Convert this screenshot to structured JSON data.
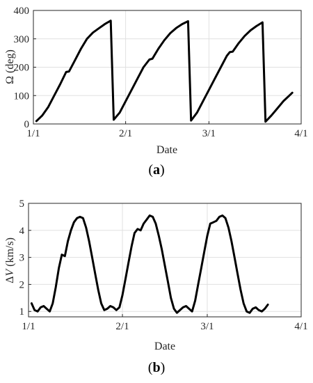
{
  "figure": {
    "caption_a": {
      "open": "(",
      "letter": "a",
      "close": ")"
    },
    "caption_b": {
      "open": "(",
      "letter": "b",
      "close": ")"
    }
  },
  "chart_data": [
    {
      "type": "line",
      "panel": "a",
      "xlabel": "Date",
      "ylabel": "Ω (deg)",
      "x_ticks": [
        {
          "x": 0,
          "label": "1/1"
        },
        {
          "x": 31,
          "label": "2/1"
        },
        {
          "x": 59,
          "label": "3/1"
        },
        {
          "x": 90,
          "label": "4/1"
        }
      ],
      "xlim": [
        0,
        90
      ],
      "ylim": [
        0,
        400
      ],
      "y_ticks": [
        0,
        100,
        200,
        300,
        400
      ],
      "grid": true,
      "series": [
        {
          "values": [
            [
              1,
              10
            ],
            [
              3,
              30
            ],
            [
              5,
              60
            ],
            [
              7,
              100
            ],
            [
              9,
              140
            ],
            [
              11,
              183
            ],
            [
              12,
              185
            ],
            [
              14,
              225
            ],
            [
              16,
              265
            ],
            [
              18,
              300
            ],
            [
              20,
              322
            ],
            [
              22,
              337
            ],
            [
              24,
              352
            ],
            [
              26,
              364
            ],
            [
              27,
              15
            ],
            [
              29,
              40
            ],
            [
              31,
              80
            ],
            [
              33,
              120
            ],
            [
              35,
              160
            ],
            [
              37,
              200
            ],
            [
              39,
              227
            ],
            [
              40,
              230
            ],
            [
              42,
              265
            ],
            [
              44,
              295
            ],
            [
              46,
              320
            ],
            [
              48,
              338
            ],
            [
              50,
              352
            ],
            [
              52,
              362
            ],
            [
              53,
              12
            ],
            [
              55,
              40
            ],
            [
              57,
              80
            ],
            [
              59,
              120
            ],
            [
              61,
              160
            ],
            [
              63,
              200
            ],
            [
              65,
              240
            ],
            [
              66,
              253
            ],
            [
              67,
              255
            ],
            [
              69,
              285
            ],
            [
              71,
              310
            ],
            [
              73,
              330
            ],
            [
              75,
              345
            ],
            [
              77,
              358
            ],
            [
              78,
              8
            ],
            [
              80,
              30
            ],
            [
              82,
              55
            ],
            [
              84,
              80
            ],
            [
              86,
              100
            ],
            [
              87,
              110
            ]
          ]
        }
      ]
    },
    {
      "type": "line",
      "panel": "b",
      "xlabel": "Date",
      "ylabel_prefix": "Δ",
      "ylabel_var": "V",
      "ylabel_unit": " (km/s)",
      "x_ticks": [
        {
          "x": 0,
          "label": "1/1"
        },
        {
          "x": 31,
          "label": "2/1"
        },
        {
          "x": 59,
          "label": "3/1"
        },
        {
          "x": 90,
          "label": "4/1"
        }
      ],
      "xlim": [
        0,
        90
      ],
      "ylim": [
        0.8,
        5
      ],
      "y_ticks": [
        1,
        2,
        3,
        4,
        5
      ],
      "grid": true,
      "series": [
        {
          "values": [
            [
              1,
              1.3
            ],
            [
              2,
              1.05
            ],
            [
              3,
              1.0
            ],
            [
              4,
              1.15
            ],
            [
              5,
              1.2
            ],
            [
              6,
              1.1
            ],
            [
              7,
              1.0
            ],
            [
              8,
              1.3
            ],
            [
              9,
              1.9
            ],
            [
              10,
              2.6
            ],
            [
              11,
              3.1
            ],
            [
              12,
              3.05
            ],
            [
              13,
              3.6
            ],
            [
              14,
              4.0
            ],
            [
              15,
              4.3
            ],
            [
              16,
              4.45
            ],
            [
              17,
              4.5
            ],
            [
              18,
              4.45
            ],
            [
              19,
              4.1
            ],
            [
              20,
              3.6
            ],
            [
              21,
              3.0
            ],
            [
              22,
              2.4
            ],
            [
              23,
              1.8
            ],
            [
              24,
              1.3
            ],
            [
              25,
              1.05
            ],
            [
              26,
              1.1
            ],
            [
              27,
              1.2
            ],
            [
              28,
              1.15
            ],
            [
              29,
              1.05
            ],
            [
              30,
              1.15
            ],
            [
              31,
              1.6
            ],
            [
              32,
              2.2
            ],
            [
              33,
              2.8
            ],
            [
              34,
              3.4
            ],
            [
              35,
              3.9
            ],
            [
              36,
              4.05
            ],
            [
              37,
              4.0
            ],
            [
              38,
              4.25
            ],
            [
              39,
              4.4
            ],
            [
              40,
              4.55
            ],
            [
              41,
              4.5
            ],
            [
              42,
              4.25
            ],
            [
              43,
              3.8
            ],
            [
              44,
              3.3
            ],
            [
              45,
              2.7
            ],
            [
              46,
              2.1
            ],
            [
              47,
              1.5
            ],
            [
              48,
              1.1
            ],
            [
              49,
              0.95
            ],
            [
              50,
              1.05
            ],
            [
              51,
              1.15
            ],
            [
              52,
              1.2
            ],
            [
              53,
              1.1
            ],
            [
              54,
              1.0
            ],
            [
              55,
              1.4
            ],
            [
              56,
              2.0
            ],
            [
              57,
              2.6
            ],
            [
              58,
              3.2
            ],
            [
              59,
              3.8
            ],
            [
              60,
              4.25
            ],
            [
              61,
              4.3
            ],
            [
              62,
              4.35
            ],
            [
              63,
              4.5
            ],
            [
              64,
              4.55
            ],
            [
              65,
              4.45
            ],
            [
              66,
              4.1
            ],
            [
              67,
              3.6
            ],
            [
              68,
              3.0
            ],
            [
              69,
              2.4
            ],
            [
              70,
              1.8
            ],
            [
              71,
              1.3
            ],
            [
              72,
              1.0
            ],
            [
              73,
              0.95
            ],
            [
              74,
              1.1
            ],
            [
              75,
              1.15
            ],
            [
              76,
              1.05
            ],
            [
              77,
              1.0
            ],
            [
              78,
              1.1
            ],
            [
              79,
              1.25
            ]
          ]
        }
      ]
    }
  ]
}
